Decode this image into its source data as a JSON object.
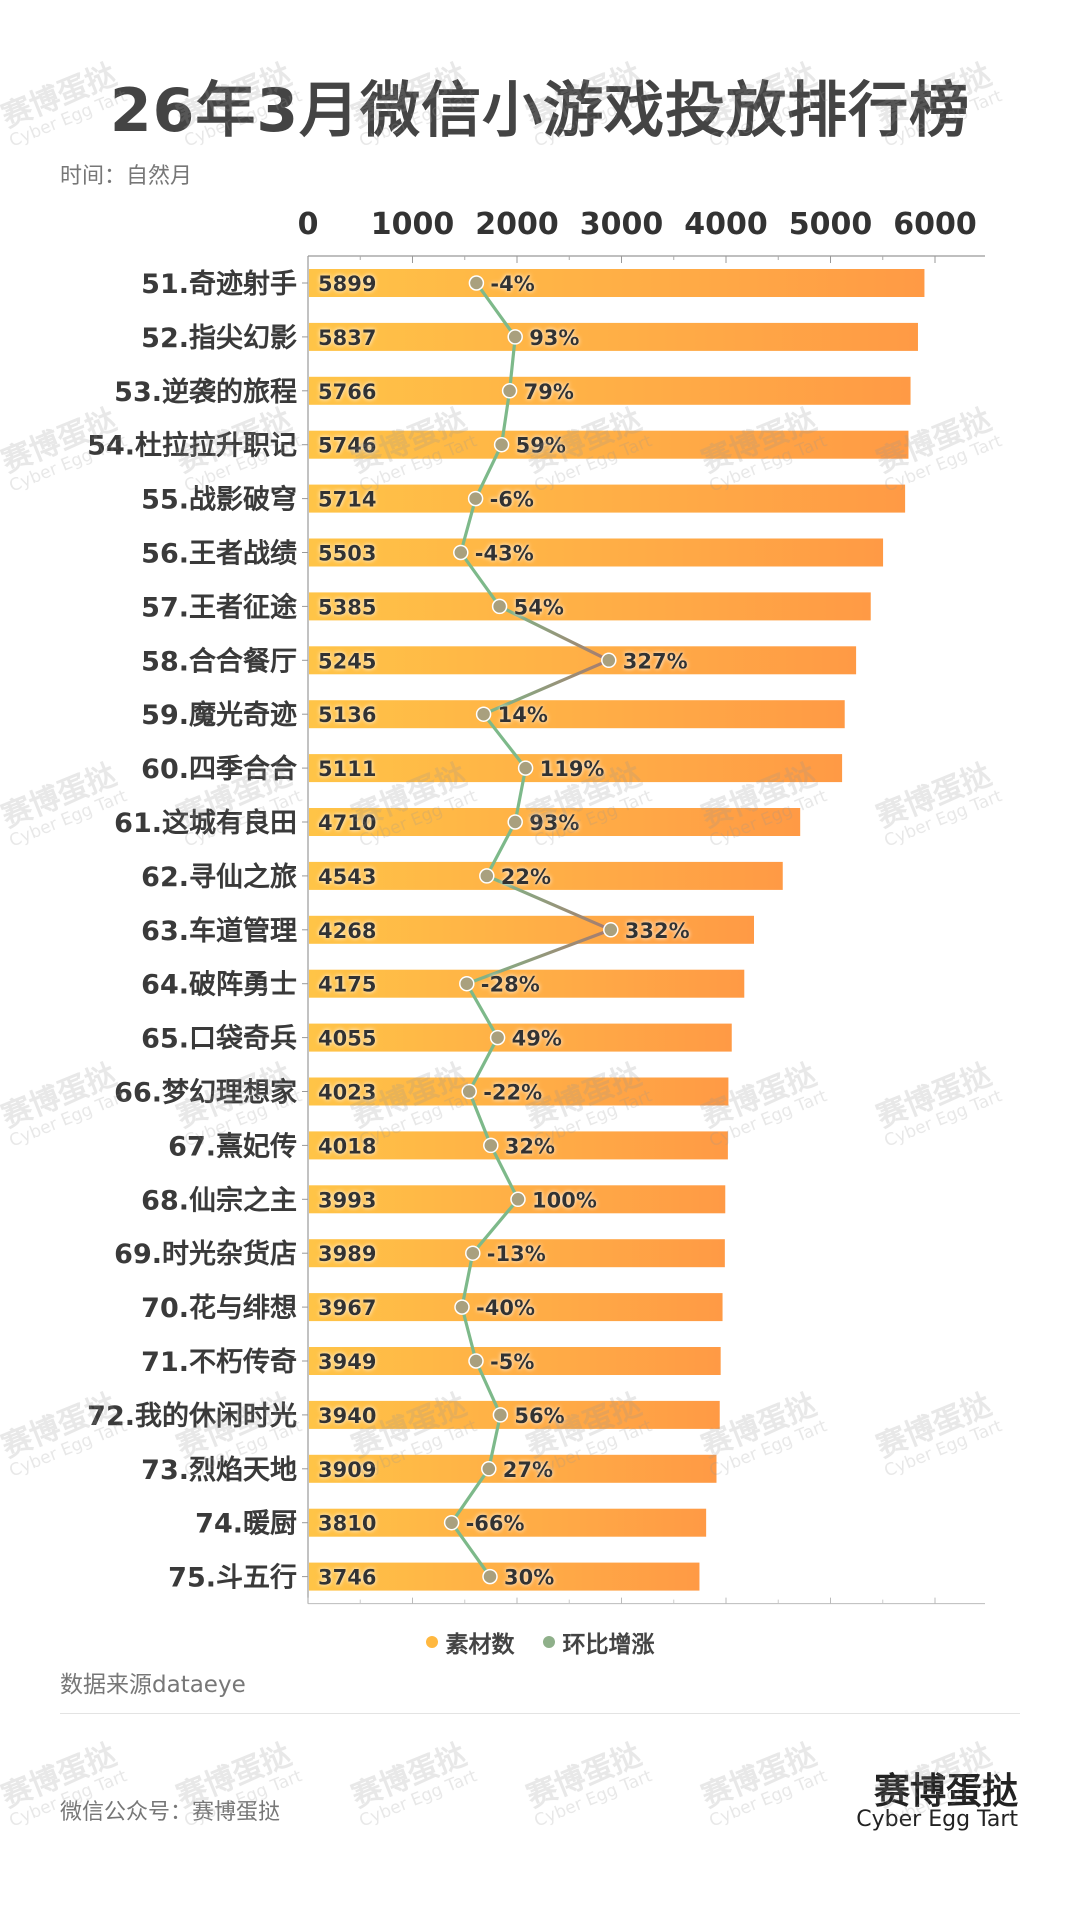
{
  "title": "26年3月微信小游戏投放排行榜",
  "subtitle": "时间：自然月",
  "source": "数据来源dataeye",
  "footer": "微信公众号：赛博蛋挞",
  "brand": {
    "cn": "赛博蛋挞",
    "en": "Cyber Egg Tart"
  },
  "watermark": {
    "cn": "赛博蛋挞",
    "en": "Cyber Egg Tart"
  },
  "colors": {
    "bar_start": "#FFC447",
    "bar_end": "#FF9A45",
    "line_green": "#7DB98A",
    "line_red": "#A87A6E",
    "marker": "#A9A07E",
    "legend_bar": "#FFB840",
    "legend_line": "#8FB08A"
  },
  "chart_data": {
    "type": "bar",
    "orientation": "horizontal",
    "axis_ticks": [
      "0",
      "1000",
      "2000",
      "3000",
      "4000",
      "5000",
      "6000"
    ],
    "xlim": [
      0,
      6200
    ],
    "legend": [
      "素材数",
      "环比增涨"
    ],
    "legend_position": "bottom",
    "categories": [
      "51.奇迹射手",
      "52.指尖幻影",
      "53.逆袭的旅程",
      "54.杜拉拉升职记",
      "55.战影破穹",
      "56.王者战绩",
      "57.王者征途",
      "58.合合餐厅",
      "59.魔光奇迹",
      "60.四季合合",
      "61.这城有良田",
      "62.寻仙之旅",
      "63.车道管理",
      "64.破阵勇士",
      "65.口袋奇兵",
      "66.梦幻理想家",
      "67.熹妃传",
      "68.仙宗之主",
      "69.时光杂货店",
      "70.花与绯想",
      "71.不朽传奇",
      "72.我的休闲时光",
      "73.烈焰天地",
      "74.暖厨",
      "75.斗五行"
    ],
    "series": [
      {
        "name": "素材数",
        "type": "bar",
        "values": [
          5899,
          5837,
          5766,
          5746,
          5714,
          5503,
          5385,
          5245,
          5136,
          5111,
          4710,
          4543,
          4268,
          4175,
          4055,
          4023,
          4018,
          3993,
          3989,
          3967,
          3949,
          3940,
          3909,
          3810,
          3746
        ],
        "labels": [
          "5899",
          "5837",
          "5766",
          "5746",
          "5714",
          "5503",
          "5385",
          "5245",
          "5136",
          "5111",
          "4710",
          "4543",
          "4268",
          "4175",
          "4055",
          "4023",
          "4018",
          "3993",
          "3989",
          "3967",
          "3949",
          "3940",
          "3909",
          "3810",
          "3746"
        ]
      },
      {
        "name": "环比增涨",
        "type": "line",
        "values": [
          -4,
          93,
          79,
          59,
          -6,
          -43,
          54,
          327,
          14,
          119,
          93,
          22,
          332,
          -28,
          49,
          -22,
          32,
          100,
          -13,
          -40,
          -5,
          56,
          27,
          -66,
          30
        ],
        "labels": [
          "-4%",
          "93%",
          "79%",
          "59%",
          "-6%",
          "-43%",
          "54%",
          "327%",
          "14%",
          "119%",
          "93%",
          "22%",
          "332%",
          "-28%",
          "49%",
          "-22%",
          "32%",
          "100%",
          "-13%",
          "-40%",
          "-5%",
          "56%",
          "27%",
          "-66%",
          "30%"
        ]
      }
    ]
  }
}
